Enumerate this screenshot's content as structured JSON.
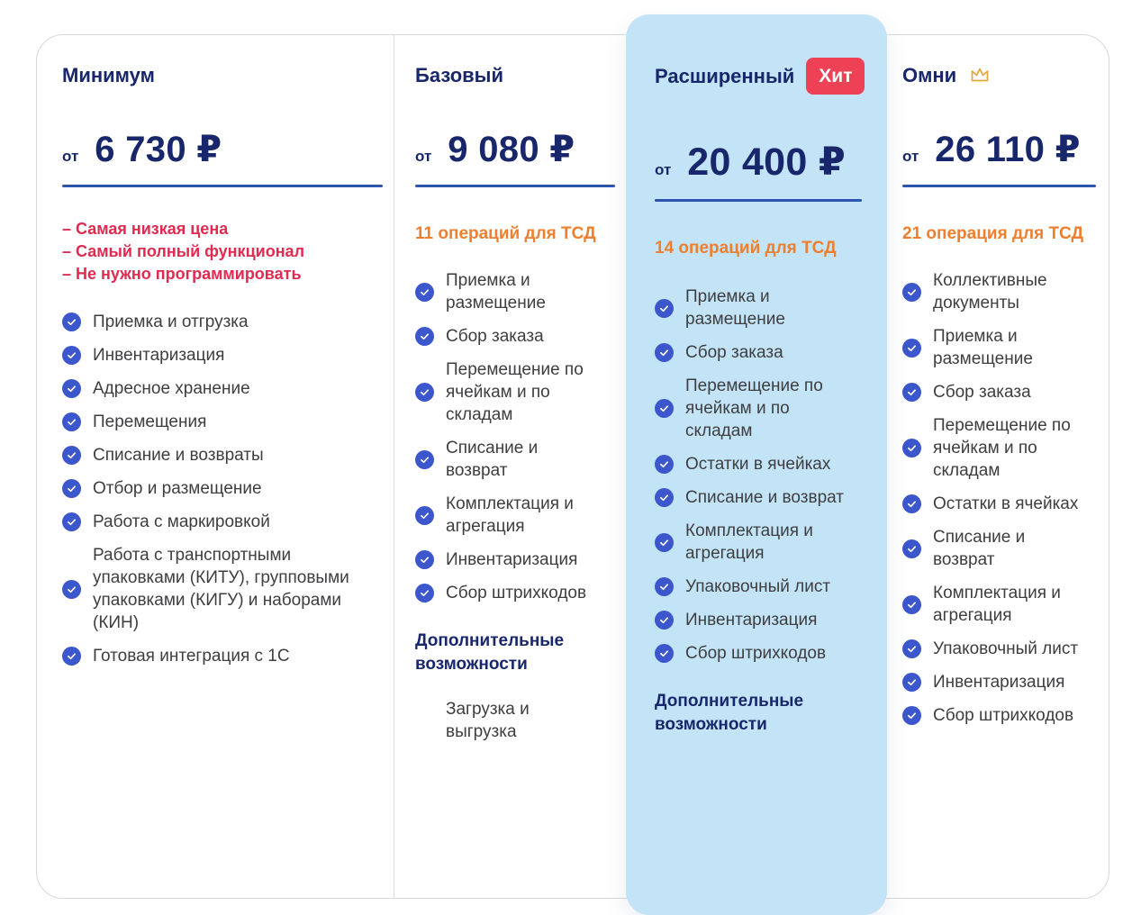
{
  "colors": {
    "navy": "#18276b",
    "price_underline": "#2d55ae",
    "red_accent": "#e02a50",
    "orange_accent": "#ed7f2f",
    "check_icon_blue": "#3c56cc",
    "highlight_card_bg": "#c3e4f7",
    "badge_bg": "#ee4156",
    "crown_gold": "#e9a63e",
    "feature_text_gray": "#3e3e41",
    "card_border": "#d8d8d8"
  },
  "icons": {
    "feature_bullet": "check-icon",
    "omni_plan": "crown-icon"
  },
  "pricing": {
    "plans": [
      {
        "name": "Минимум",
        "price_prefix": "от",
        "price": "6 730 ₽",
        "highlights": [
          "– Самая низкая цена",
          "– Самый полный функционал",
          "– Не нужно программировать"
        ],
        "features": [
          "Приемка и отгрузка",
          "Инвентаризация",
          "Адресное хранение",
          "Перемещения",
          "Списание и возвраты",
          "Отбор и размещение",
          "Работа с маркировкой",
          [
            "Работа с транспортными",
            "упаковками (КИТУ), групповыми",
            "упаковками (КИГУ) и наборами",
            "(КИН)"
          ],
          "Готовая интеграция с 1С"
        ]
      },
      {
        "name": "Базовый",
        "price_prefix": "от",
        "price": "9 080 ₽",
        "operations_note": "11 операций для ТСД",
        "features": [
          [
            "Приемка и",
            "размещение"
          ],
          "Сбор заказа",
          [
            "Перемещение по",
            "ячейкам и по",
            "складам"
          ],
          [
            "Списание и",
            "возврат"
          ],
          [
            "Комплектация и",
            "агрегация"
          ],
          "Инвентаризация",
          "Сбор штрихкодов"
        ],
        "extra_heading": [
          "Дополнительные",
          "возможности"
        ],
        "extra_features": [
          [
            "Загрузка и",
            "выгрузка"
          ]
        ]
      },
      {
        "name": "Расширенный",
        "badge": "Хит",
        "highlighted": true,
        "price_prefix": "от",
        "price": "20 400 ₽",
        "operations_note": "14 операций для ТСД",
        "features": [
          [
            "Приемка и",
            "размещение"
          ],
          "Сбор заказа",
          [
            "Перемещение по",
            "ячейкам и по",
            "складам"
          ],
          "Остатки в ячейках",
          "Списание и возврат",
          [
            "Комплектация и",
            "агрегация"
          ],
          "Упаковочный лист",
          "Инвентаризация",
          "Сбор штрихкодов"
        ],
        "extra_heading": [
          "Дополнительные",
          "возможности"
        ]
      },
      {
        "name": "Омни",
        "icon": "crown-icon",
        "price_prefix": "от",
        "price": "26 110 ₽",
        "operations_note": "21 операция для ТСД",
        "features": [
          [
            "Коллективные",
            "документы"
          ],
          [
            "Приемка и",
            "размещение"
          ],
          "Сбор заказа",
          [
            "Перемещение по",
            "ячейкам и по",
            "складам"
          ],
          "Остатки в ячейках",
          [
            "Списание и",
            "возврат"
          ],
          [
            "Комплектация и",
            "агрегация"
          ],
          "Упаковочный лист",
          "Инвентаризация",
          "Сбор штрихкодов"
        ]
      }
    ]
  }
}
